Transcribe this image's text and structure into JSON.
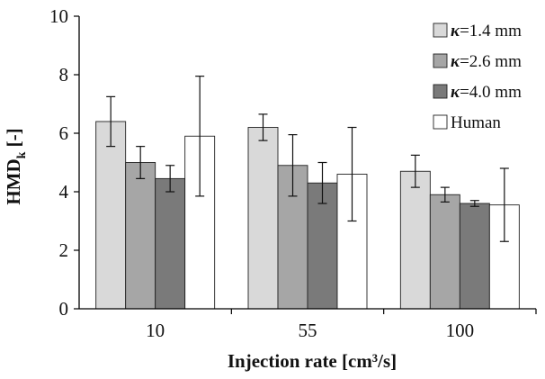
{
  "chart_data": {
    "type": "bar",
    "title": "",
    "xlabel": "Injection rate [cm³/s]",
    "ylabel": {
      "main": "HMD",
      "sub": "k",
      "suffix": " [-]"
    },
    "ylim": [
      0,
      10
    ],
    "yticks": [
      0,
      2,
      4,
      6,
      8,
      10
    ],
    "categories": [
      "10",
      "55",
      "100"
    ],
    "legend_position": "top-right",
    "grid": false,
    "series": [
      {
        "name": "κ=1.4 mm",
        "legend_prefix": "κ",
        "legend_suffix": "=1.4 mm",
        "color": "#d9d9d9",
        "values": [
          6.4,
          6.2,
          4.7
        ],
        "errors": [
          0.85,
          0.45,
          0.55
        ]
      },
      {
        "name": "κ=2.6 mm",
        "legend_prefix": "κ",
        "legend_suffix": "=2.6 mm",
        "color": "#a6a6a6",
        "values": [
          5.0,
          4.9,
          3.9
        ],
        "errors": [
          0.55,
          1.05,
          0.25
        ]
      },
      {
        "name": "κ=4.0 mm",
        "legend_prefix": "κ",
        "legend_suffix": "=4.0 mm",
        "color": "#7a7a7a",
        "values": [
          4.45,
          4.3,
          3.6
        ],
        "errors": [
          0.45,
          0.7,
          0.1
        ]
      },
      {
        "name": "Human",
        "legend_prefix": "",
        "legend_suffix": "Human",
        "color": "#ffffff",
        "values": [
          5.9,
          4.6,
          3.55
        ],
        "errors": [
          2.05,
          1.6,
          1.25
        ]
      }
    ]
  }
}
